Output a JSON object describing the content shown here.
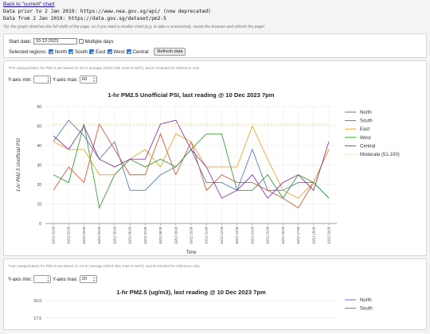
{
  "header": {
    "back_link": "Back to \"current\" chart",
    "source_prior": "Data prior to 2 Jan 2019: https://www.nea.gov.sg/api/ (now deprecated)",
    "source_from": "Data from 2 Jan 2019: https://data.gov.sg/dataset/pm2-5",
    "tip": "Tip: the graph stretches the full width of the page, so if you need a smaller chart (e.g. to take a screenshot), resize the browser and refresh the page!"
  },
  "controls": {
    "start_date_label": "Start date:",
    "start_date_value": "10-12-2023",
    "multiple_days_label": "Multiple days",
    "regions_label": "Selected regions:",
    "regions": [
      {
        "label": "North",
        "checked": true
      },
      {
        "label": "South",
        "checked": true
      },
      {
        "label": "East",
        "checked": true
      },
      {
        "label": "West",
        "checked": true
      },
      {
        "label": "Central",
        "checked": true
      }
    ],
    "refresh_label": "Refresh data"
  },
  "chart1": {
    "note": "*PSI categorization for PM2.5 are based on 24-hr average (which this chart is NOT), and is included for reference only.",
    "ymin_label": "Y-axis min:",
    "ymin_value": "",
    "ymax_label": "Y-axis max:",
    "ymax_value": "60"
  },
  "chart2": {
    "note": "*AQI categorization for PM2.5 are based on 24-hr average (which this chart is NOT), and is included for reference only.",
    "ymin_label": "Y-axis min:",
    "ymin_value": "",
    "ymax_label": "Y-axis max:",
    "ymax_value": "20"
  },
  "colors": {
    "North": "#4f7fba",
    "South": "#d65a3a",
    "East": "#e8a92c",
    "West": "#3aa03a",
    "Central": "#8e3aa8",
    "Moderate": "#f2d66b"
  },
  "chart_data": [
    {
      "type": "line",
      "title": "1-hr PM2.5 Unofficial PSI, last reading @ 10 Dec 2023 7pm",
      "xlabel": "Time",
      "ylabel": "1-hr PM2.5 Unofficial PSI",
      "ylim": [
        0,
        60
      ],
      "yticks": [
        0,
        10,
        20,
        30,
        40,
        50,
        60
      ],
      "grid": true,
      "legend_position": "right",
      "x": [
        "10/12 01:00",
        "10/12 02:00",
        "10/12 03:00",
        "10/12 04:00",
        "10/12 05:00",
        "10/12 06:00",
        "10/12 07:00",
        "10/12 08:00",
        "10/12 09:00",
        "10/12 10:00",
        "10/12 11:00",
        "10/12 12:00",
        "10/12 13:00",
        "10/12 14:00",
        "10/12 15:00",
        "10/12 16:00",
        "10/12 17:00",
        "10/12 18:00",
        "10/12 19:00"
      ],
      "series": [
        {
          "name": "North",
          "values": [
            42,
            53,
            45,
            33,
            42,
            17,
            17,
            25,
            29,
            38,
            21,
            21,
            17,
            38,
            17,
            17,
            21,
            21,
            13
          ]
        },
        {
          "name": "South",
          "values": [
            17,
            29,
            21,
            51,
            38,
            25,
            25,
            46,
            25,
            42,
            17,
            25,
            21,
            21,
            17,
            13,
            8,
            21,
            38
          ]
        },
        {
          "name": "East",
          "values": [
            42,
            38,
            38,
            25,
            25,
            33,
            38,
            29,
            46,
            42,
            29,
            29,
            29,
            50,
            33,
            17,
            13,
            21,
            38
          ]
        },
        {
          "name": "West",
          "values": [
            25,
            21,
            51,
            8,
            25,
            33,
            29,
            33,
            29,
            38,
            46,
            46,
            17,
            17,
            25,
            13,
            25,
            21,
            13
          ]
        },
        {
          "name": "Central",
          "values": [
            45,
            38,
            50,
            33,
            29,
            33,
            33,
            51,
            53,
            38,
            29,
            13,
            17,
            25,
            13,
            21,
            25,
            17,
            42
          ]
        },
        {
          "name": "Moderate (51-100)",
          "values": [
            51,
            51,
            51,
            51,
            51,
            51,
            51,
            51,
            51,
            51,
            51,
            51,
            51,
            51,
            51,
            51,
            51,
            51,
            51
          ]
        }
      ]
    },
    {
      "type": "line",
      "title": "1-hr PM2.5 (ug/m3), last reading @ 10 Dec 2023 7pm",
      "ylim": [
        0,
        20
      ],
      "yticks": [
        17.5,
        20.0
      ],
      "legend_position": "right",
      "series": [
        {
          "name": "North"
        },
        {
          "name": "South"
        }
      ]
    }
  ]
}
